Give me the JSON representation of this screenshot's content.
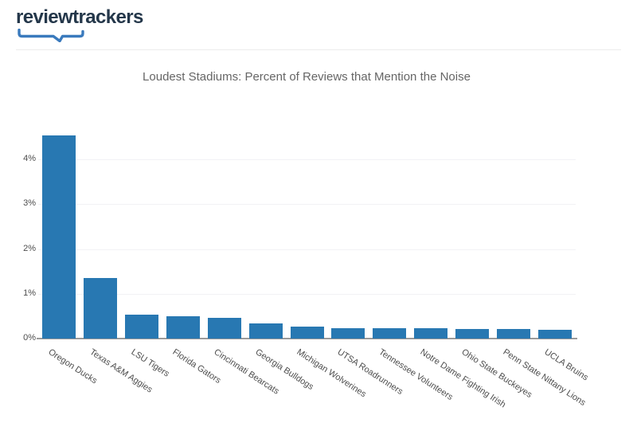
{
  "brand": {
    "logo_text": "reviewtrackers",
    "logo_text_color": "#24374a",
    "swoosh_color": "#3a7abd"
  },
  "chart_data": {
    "type": "bar",
    "title": "Loudest Stadiums: Percent of Reviews that Mention the Noise",
    "xlabel": "",
    "ylabel": "",
    "unit": "%",
    "categories": [
      "Oregon Ducks",
      "Texas A&M Aggies",
      "LSU Tigers",
      "Florida Gators",
      "Cincinnati Bearcats",
      "Georgia Bulldogs",
      "Michigan Wolverines",
      "UTSA Roadrunners",
      "Tennessee Volunteers",
      "Notre Dame Fighting Irish",
      "Ohio State Buckeyes",
      "Penn State Nittany Lions",
      "UCLA Bruins"
    ],
    "values": [
      4.53,
      1.36,
      0.53,
      0.49,
      0.47,
      0.34,
      0.27,
      0.23,
      0.23,
      0.23,
      0.21,
      0.21,
      0.19
    ],
    "yticks": [
      {
        "label": "0%",
        "value": 0
      },
      {
        "label": "1%",
        "value": 1
      },
      {
        "label": "2%",
        "value": 2
      },
      {
        "label": "3%",
        "value": 3
      },
      {
        "label": "4%",
        "value": 4
      }
    ],
    "ylim": [
      0,
      4.7
    ],
    "grid": true,
    "legend": "none",
    "bar_color": "#2878b2",
    "grid_color": "#f2f2f5",
    "axis_line_color": "#9b9b9b",
    "tick_label_color": "#4d4d4d",
    "title_color": "#666666"
  }
}
